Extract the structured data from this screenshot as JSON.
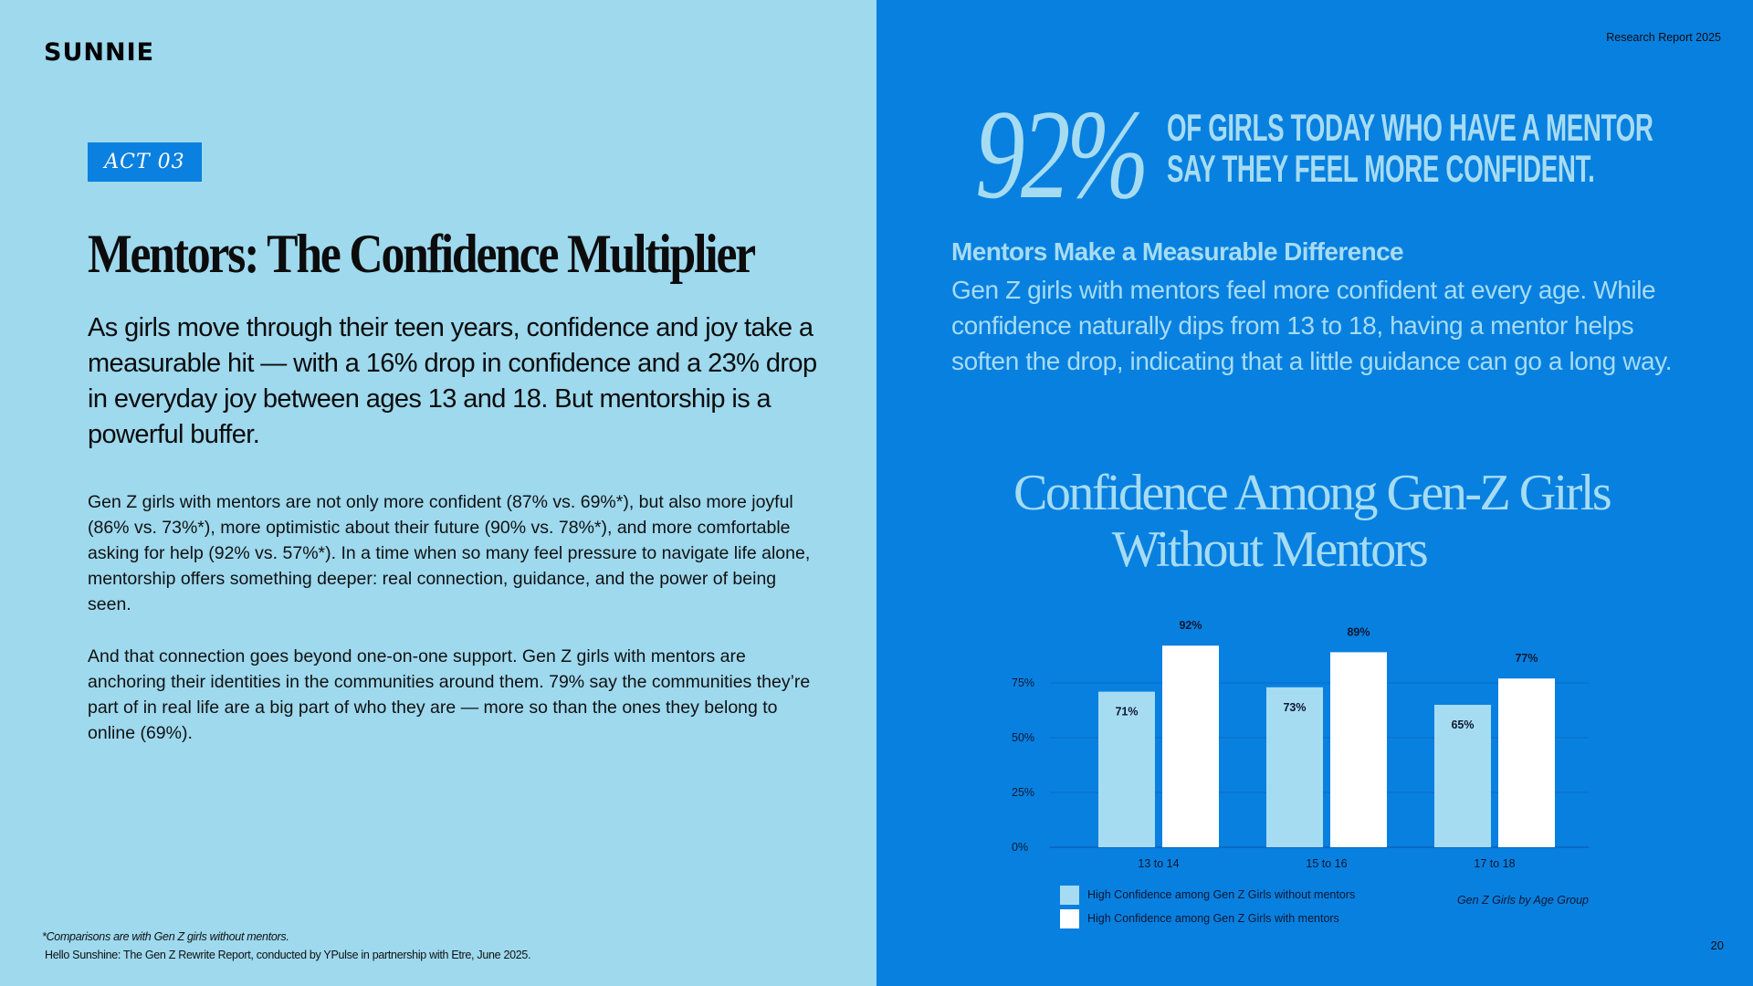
{
  "left": {
    "logo": "SUNNIE",
    "act_label": "ACT 03",
    "title": "Mentors: The Confidence Multiplier",
    "lead": "As girls move through their teen years, confidence and joy take a measurable hit — with a 16% drop in confidence and a 23% drop in everyday joy between ages 13 and 18. But mentorship is a powerful buffer.",
    "para1": "Gen Z girls with mentors are not only more confident (87% vs. 69%*), but also more joyful (86% vs. 73%*), more optimistic about their future (90% vs. 78%*), and more comfortable asking for help (92% vs. 57%*). In a time when so many feel pressure to navigate life alone, mentorship offers something deeper: real connection, guidance, and the power of being seen.",
    "para2": "And that connection goes beyond one-on-one support. Gen Z girls with mentors are anchoring their identities in the communities around them. 79% say the communities they’re part of in real life are a big part of who they are — more so than the ones they belong to online (69%).",
    "footnote": "*Comparisons are with Gen Z girls without mentors.",
    "source": "Hello Sunshine: The Gen Z Rewrite Report, conducted by YPulse in partnership with Etre, June 2025."
  },
  "right": {
    "report_label": "Research Report 2025",
    "stat_value": "92%",
    "stat_line1": "OF GIRLS TODAY WHO HAVE A MENTOR",
    "stat_line2": "SAY THEY FEEL MORE CONFIDENT.",
    "subhead": "Mentors Make a Measurable Difference",
    "description": "Gen Z girls with mentors feel more confident at every age. While confidence naturally dips from 13 to 18, having a mentor helps soften the drop, indicating that a little guidance can go a long way.",
    "chart_title_line1": "Confidence Among Gen-Z Girls",
    "chart_title_line2": "Without Mentors",
    "page_number": "20"
  },
  "colors": {
    "left_bg": "#9ed9ee",
    "right_bg": "#0880e0",
    "accent_light": "#a6dcf2",
    "badge_bg": "#0a80e0",
    "bar_without": "#a6dcf2",
    "bar_with": "#ffffff"
  },
  "chart_data": {
    "type": "bar",
    "title": "Confidence Among Gen-Z Girls Without Mentors",
    "categories": [
      "13 to 14",
      "15 to 16",
      "17 to 18"
    ],
    "series": [
      {
        "name": "High Confidence among Gen Z Girls without mentors",
        "values": [
          71,
          73,
          65
        ],
        "labels": [
          "71%",
          "73%",
          "65%"
        ],
        "color": "#a6dcf2"
      },
      {
        "name": "High Confidence among Gen Z Girls with mentors",
        "values": [
          92,
          89,
          77
        ],
        "labels": [
          "92%",
          "89%",
          "77%"
        ],
        "color": "#ffffff"
      }
    ],
    "y_ticks": [
      0,
      25,
      50,
      75
    ],
    "y_tick_labels": [
      "0%",
      "25%",
      "50%",
      "75%"
    ],
    "ylim": [
      0,
      92
    ],
    "grid": true,
    "xlabel": "Gen Z Girls by Age Group",
    "ylabel": "",
    "legend_position": "bottom-left"
  }
}
